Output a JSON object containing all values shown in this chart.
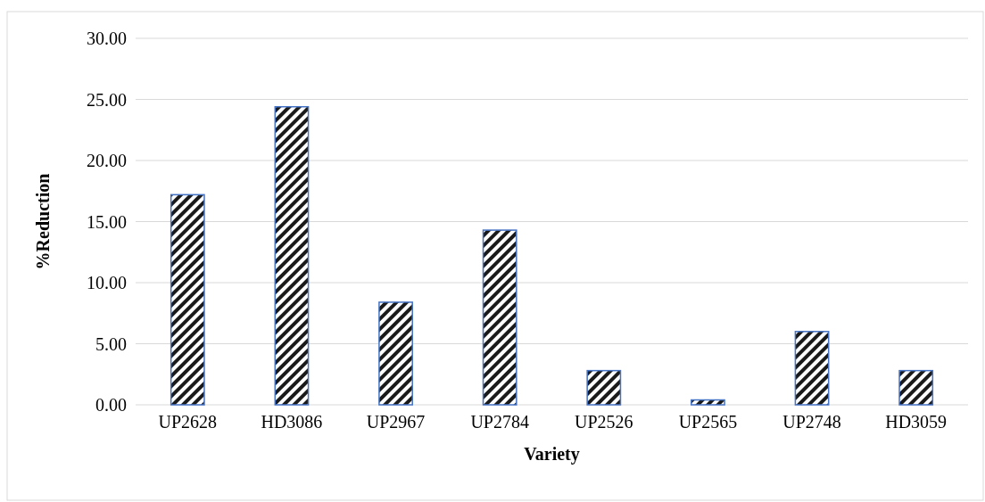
{
  "chart_data": {
    "type": "bar",
    "xlabel": "Variety",
    "ylabel": "%Reduction",
    "categories": [
      "UP2628",
      "HD3086",
      "UP2967",
      "UP2784",
      "UP2526",
      "UP2565",
      "UP2748",
      "HD3059"
    ],
    "values": [
      17.2,
      24.4,
      8.4,
      14.3,
      2.8,
      0.4,
      6.0,
      2.8
    ],
    "color": "#4472c4",
    "ylim": [
      0,
      30
    ],
    "yticks": [
      {
        "value": 0,
        "label": "0.00"
      },
      {
        "value": 5,
        "label": "5.00"
      },
      {
        "value": 10,
        "label": "10.00"
      },
      {
        "value": 15,
        "label": "15.00"
      },
      {
        "value": 20,
        "label": "20.00"
      },
      {
        "value": 25,
        "label": "25.00"
      },
      {
        "value": 30,
        "label": "30.00"
      }
    ],
    "grid": "y"
  }
}
